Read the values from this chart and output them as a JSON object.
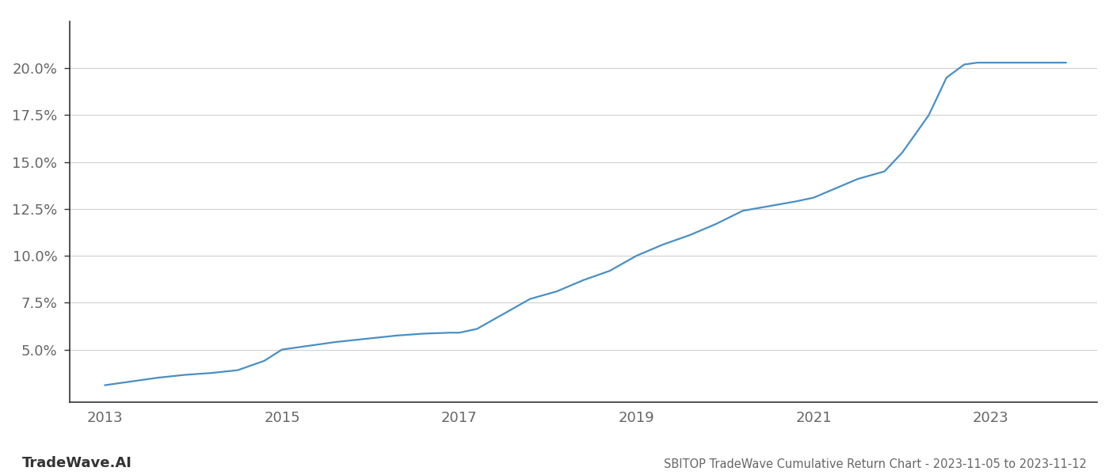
{
  "title": "SBITOP TradeWave Cumulative Return Chart - 2023-11-05 to 2023-11-12",
  "watermark": "TradeWave.AI",
  "line_color": "#4a8fc4",
  "background_color": "#ffffff",
  "grid_color": "#d0d0d0",
  "x_values": [
    2013.0,
    2013.3,
    2013.6,
    2013.9,
    2014.2,
    2014.5,
    2014.8,
    2015.0,
    2015.3,
    2015.6,
    2016.0,
    2016.3,
    2016.6,
    2016.9,
    2017.0,
    2017.2,
    2017.5,
    2017.8,
    2018.1,
    2018.4,
    2018.7,
    2019.0,
    2019.3,
    2019.6,
    2019.9,
    2020.2,
    2020.5,
    2020.8,
    2021.0,
    2021.2,
    2021.5,
    2021.8,
    2022.0,
    2022.3,
    2022.5,
    2022.7,
    2022.85,
    2023.0,
    2023.3,
    2023.6,
    2023.85
  ],
  "y_values": [
    3.1,
    3.3,
    3.5,
    3.65,
    3.75,
    3.9,
    4.4,
    5.0,
    5.2,
    5.4,
    5.6,
    5.75,
    5.85,
    5.9,
    5.9,
    6.1,
    6.9,
    7.7,
    8.1,
    8.7,
    9.2,
    10.0,
    10.6,
    11.1,
    11.7,
    12.4,
    12.65,
    12.9,
    13.1,
    13.5,
    14.1,
    14.5,
    15.5,
    17.5,
    19.5,
    20.2,
    20.3,
    20.3,
    20.3,
    20.3,
    20.3
  ],
  "x_ticks": [
    2013,
    2015,
    2017,
    2019,
    2021,
    2023
  ],
  "y_ticks": [
    5.0,
    7.5,
    10.0,
    12.5,
    15.0,
    17.5,
    20.0
  ],
  "y_tick_labels": [
    "5.0%",
    "7.5%",
    "10.0%",
    "12.5%",
    "15.0%",
    "17.5%",
    "20.0%"
  ],
  "xlim": [
    2012.6,
    2024.2
  ],
  "ylim": [
    2.2,
    22.5
  ],
  "line_width": 1.6,
  "title_fontsize": 10.5,
  "tick_fontsize": 13,
  "watermark_fontsize": 13,
  "spine_color": "#333333"
}
